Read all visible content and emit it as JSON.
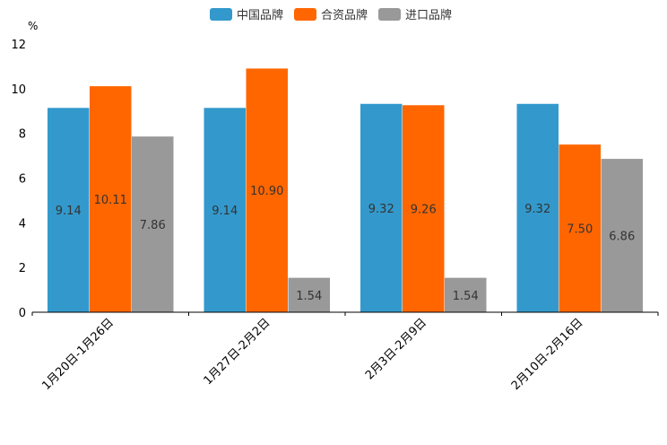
{
  "chart_data": {
    "type": "bar",
    "title": "",
    "ylabel": "%",
    "xlabel": "",
    "ylim": [
      0,
      12
    ],
    "yticks": [
      0,
      2,
      4,
      6,
      8,
      10,
      12
    ],
    "categories": [
      "1月20日-1月26日",
      "1月27日-2月2日",
      "2月3日-2月9日",
      "2月10日-2月16日"
    ],
    "series": [
      {
        "name": "中国品牌",
        "color": "#3399cc",
        "values": [
          9.14,
          9.14,
          9.32,
          9.32
        ],
        "labels": [
          "9.14",
          "9.14",
          "9.32",
          "9.32"
        ]
      },
      {
        "name": "合资品牌",
        "color": "#ff6600",
        "values": [
          10.11,
          10.9,
          9.26,
          7.5
        ],
        "labels": [
          "10.11",
          "10.90",
          "9.26",
          "7.50"
        ]
      },
      {
        "name": "进口品牌",
        "color": "#999999",
        "values": [
          7.86,
          1.54,
          1.54,
          6.86
        ],
        "labels": [
          "7.86",
          "1.54",
          "1.54",
          "6.86"
        ]
      }
    ],
    "legend_position": "top-center",
    "grid": false
  }
}
